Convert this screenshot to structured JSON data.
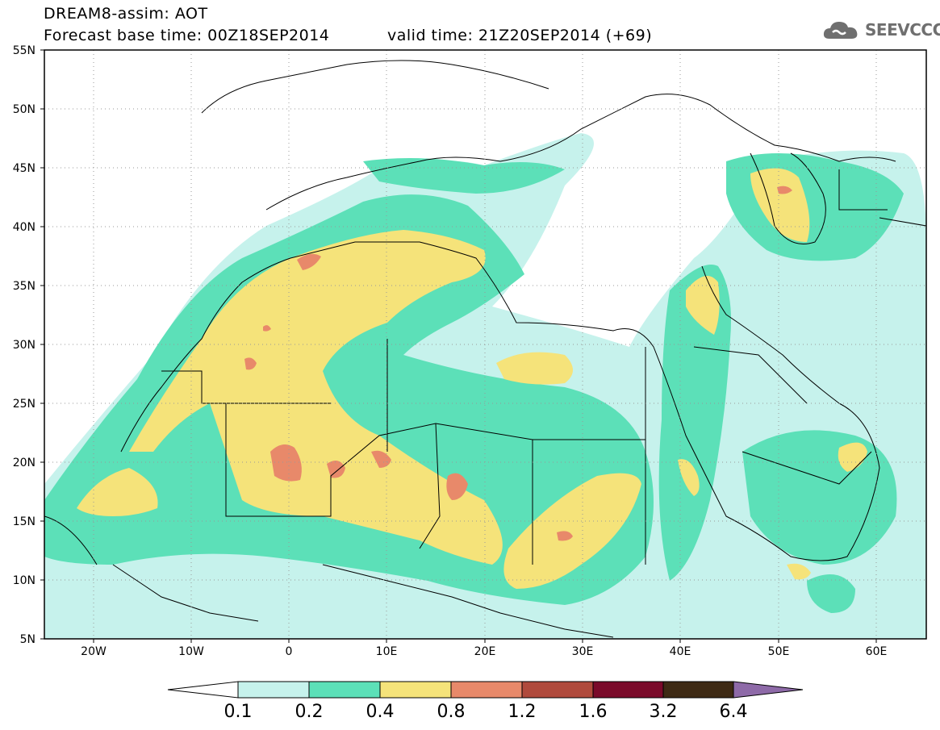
{
  "header": {
    "title": "DREAM8-assim: AOT",
    "base_time": "Forecast base time: 00Z18SEP2014",
    "valid_time": "valid time: 21Z20SEP2014 (+69)",
    "logo_text": "SEEVCCC"
  },
  "map": {
    "lon_range": [
      -25,
      65
    ],
    "lat_range": [
      5,
      55
    ],
    "lat_labels": [
      "55N",
      "50N",
      "45N",
      "40N",
      "35N",
      "30N",
      "25N",
      "20N",
      "15N",
      "10N",
      "5N"
    ],
    "lon_labels": [
      "20W",
      "10W",
      "0",
      "10E",
      "20E",
      "30E",
      "40E",
      "50E",
      "60E"
    ]
  },
  "colorbar": {
    "labels": [
      "0.1",
      "0.2",
      "0.4",
      "0.8",
      "1.2",
      "1.6",
      "3.2",
      "6.4"
    ],
    "colors": [
      "#c6f2ec",
      "#5ce0b8",
      "#f5e37a",
      "#e8896a",
      "#b04a3c",
      "#7a0a2a",
      "#3e2a14",
      "#8e6aa8"
    ]
  }
}
